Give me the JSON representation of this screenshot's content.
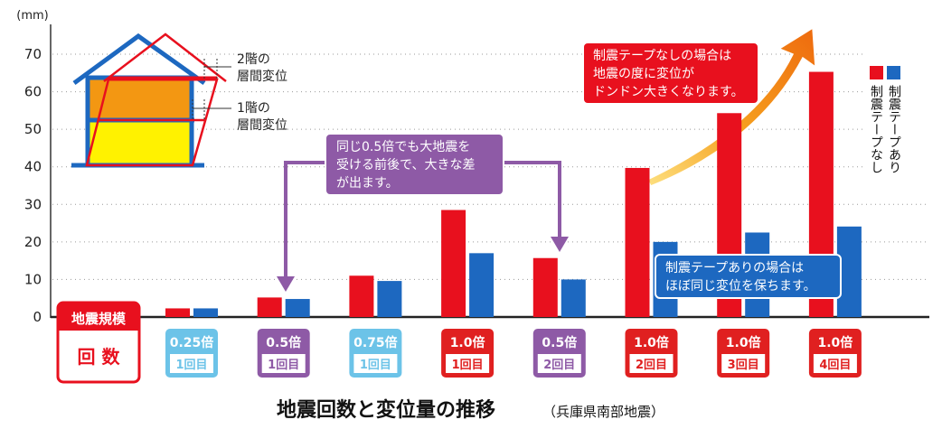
{
  "chart_data": {
    "type": "bar",
    "title": "地震回数と変位量の推移",
    "subtitle": "（兵庫県南部地震）",
    "ylabel": "(mm)",
    "ylim": [
      0,
      75
    ],
    "yticks": [
      0,
      10,
      20,
      30,
      40,
      50,
      60,
      70
    ],
    "grid": true,
    "legend_position": "top-right",
    "row_header": {
      "line1": "地震規模",
      "line2": "回 数"
    },
    "categories": [
      {
        "scale": "0.25倍",
        "count": "1回目",
        "color": "#6cc3e8"
      },
      {
        "scale": "0.5倍",
        "count": "1回目",
        "color": "#8e5aa6"
      },
      {
        "scale": "0.75倍",
        "count": "1回目",
        "color": "#6cc3e8"
      },
      {
        "scale": "1.0倍",
        "count": "1回目",
        "color": "#e02020"
      },
      {
        "scale": "0.5倍",
        "count": "2回目",
        "color": "#8e5aa6"
      },
      {
        "scale": "1.0倍",
        "count": "2回目",
        "color": "#e02020"
      },
      {
        "scale": "1.0倍",
        "count": "3回目",
        "color": "#e02020"
      },
      {
        "scale": "1.0倍",
        "count": "4回目",
        "color": "#e02020"
      }
    ],
    "series": [
      {
        "name": "制震テープなし",
        "color": "#e8101e",
        "values": [
          2.3,
          5.2,
          11,
          28.5,
          15.7,
          39.7,
          54.3,
          65.3
        ]
      },
      {
        "name": "制震テープあり",
        "color": "#1d68c0",
        "values": [
          2.3,
          4.8,
          9.6,
          17,
          10,
          20,
          22.5,
          24.1
        ]
      }
    ],
    "annotations": {
      "house_upper": [
        "2階の",
        "層間変位"
      ],
      "house_lower": [
        "1階の",
        "層間変位"
      ],
      "purple_note": [
        "同じ0.5倍でも大地震を",
        "受ける前後で、大きな差",
        "が出ます。"
      ],
      "red_note": [
        "制震テープなしの場合は",
        "地震の度に変位が",
        "ドンドン大きくなります。"
      ],
      "blue_note": [
        "制震テープありの場合は",
        "ほぼ同じ変位を保ちます。"
      ]
    }
  }
}
